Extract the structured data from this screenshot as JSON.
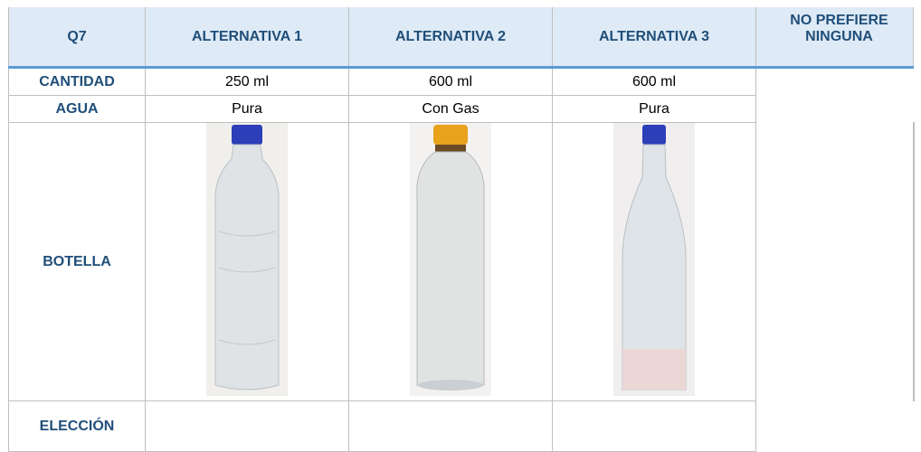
{
  "table": {
    "header": [
      "Q7",
      "ALTERNATIVA 1",
      "ALTERNATIVA 2",
      "ALTERNATIVA 3",
      "NO PREFIERE NINGUNA"
    ],
    "rows": [
      [
        "CANTIDAD",
        "250 ml",
        "600 ml",
        "600 ml"
      ],
      [
        "AGUA",
        "Pura",
        "Con Gas",
        "Pura"
      ],
      [
        "BOTELLA"
      ],
      [
        "ELECCIÓN"
      ]
    ]
  }
}
